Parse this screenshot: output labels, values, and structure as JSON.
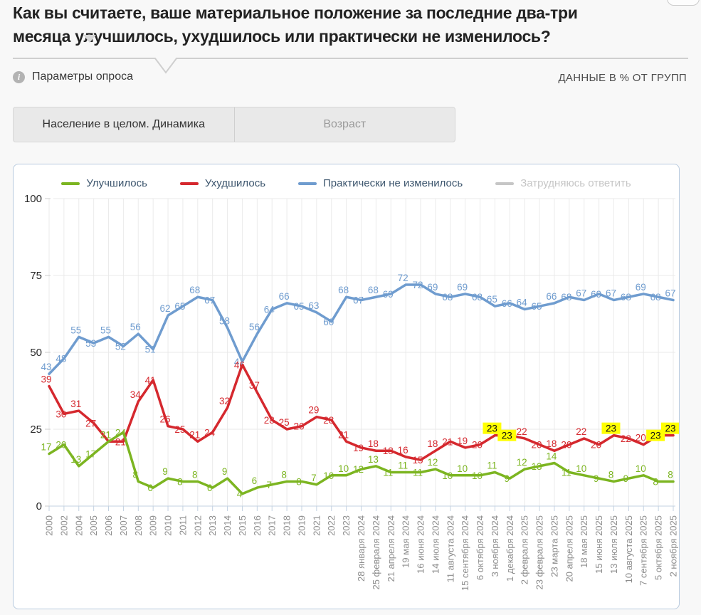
{
  "header": {
    "title": "Как вы считаете, ваше материальное положение за последние два-три месяца улучшилось, ухудшилось или практически не изменилось?",
    "params_label": "Параметры опроса",
    "info_icon_glyph": "i",
    "data_note": "ДАННЫЕ В % ОТ ГРУПП"
  },
  "tabs": [
    {
      "label": "Население в целом. Динамика",
      "active": true
    },
    {
      "label": "Возраст",
      "active": false
    }
  ],
  "chart_data": {
    "type": "line",
    "title": "",
    "xlabel": "",
    "ylabel": "",
    "ylim": [
      0,
      100
    ],
    "yticks": [
      0,
      25,
      50,
      75,
      100
    ],
    "grid": true,
    "legend_position": "top",
    "highlight_color": "#ffff00",
    "categories": [
      "2000",
      "2002",
      "2004",
      "2005",
      "2006",
      "2007",
      "2008",
      "2009",
      "2010",
      "2011",
      "2012",
      "2013",
      "2014",
      "2015",
      "2016",
      "2017",
      "2018",
      "2019",
      "2021",
      "2022",
      "2023",
      "28 января 2024",
      "25 февраля 2024",
      "21 апреля 2024",
      "19 мая 2024",
      "16 июня 2024",
      "14 июля 2024",
      "11 августа 2024",
      "15 сентября 2024",
      "6 октября 2024",
      "3 ноября 2024",
      "1 декабря 2024",
      "2 февраля 2025",
      "23 февраля 2025",
      "23 марта 2025",
      "20 апреля 2025",
      "18 мая 2025",
      "15 июня 2025",
      "13 июля 2025",
      "10 августа 2025",
      "7 сентября 2025",
      "5 октября 2025",
      "2 ноября 2025"
    ],
    "series": [
      {
        "key": "improved",
        "name": "Улучшилось",
        "color": "#7cb521",
        "values": [
          17,
          20,
          13,
          17,
          21,
          24,
          8,
          6,
          9,
          8,
          8,
          6,
          9,
          4,
          6,
          7,
          8,
          8,
          7,
          10,
          10,
          12,
          13,
          11,
          11,
          11,
          12,
          10,
          10,
          10,
          11,
          9,
          12,
          13,
          14,
          11,
          10,
          9,
          8,
          9,
          10,
          8,
          8
        ],
        "highlighted_indices": [],
        "disabled": false
      },
      {
        "key": "worsened",
        "name": "Ухудшилось",
        "color": "#d5282e",
        "values": [
          39,
          30,
          31,
          27,
          21,
          21,
          34,
          41,
          26,
          25,
          21,
          24,
          32,
          46,
          37,
          28,
          25,
          26,
          29,
          28,
          21,
          19,
          18,
          18,
          16,
          15,
          18,
          21,
          19,
          20,
          23,
          23,
          22,
          20,
          18,
          20,
          22,
          20,
          23,
          22,
          20,
          23,
          23
        ],
        "highlighted_indices": [
          30,
          31,
          38,
          41,
          42
        ],
        "disabled": false
      },
      {
        "key": "unchanged",
        "name": "Практически не изменилось",
        "color": "#6f9ccf",
        "values": [
          43,
          48,
          55,
          53,
          55,
          52,
          56,
          51,
          62,
          65,
          68,
          67,
          58,
          47,
          56,
          64,
          66,
          65,
          63,
          60,
          68,
          67,
          68,
          69,
          72,
          72,
          69,
          68,
          69,
          68,
          65,
          66,
          64,
          65,
          66,
          68,
          67,
          69,
          67,
          68,
          69,
          68,
          67
        ],
        "highlighted_indices": [],
        "disabled": false
      },
      {
        "key": "undecided",
        "name": "Затрудняюсь ответить",
        "color": "#c6c6c6",
        "values": null,
        "highlighted_indices": [],
        "disabled": true
      }
    ]
  }
}
